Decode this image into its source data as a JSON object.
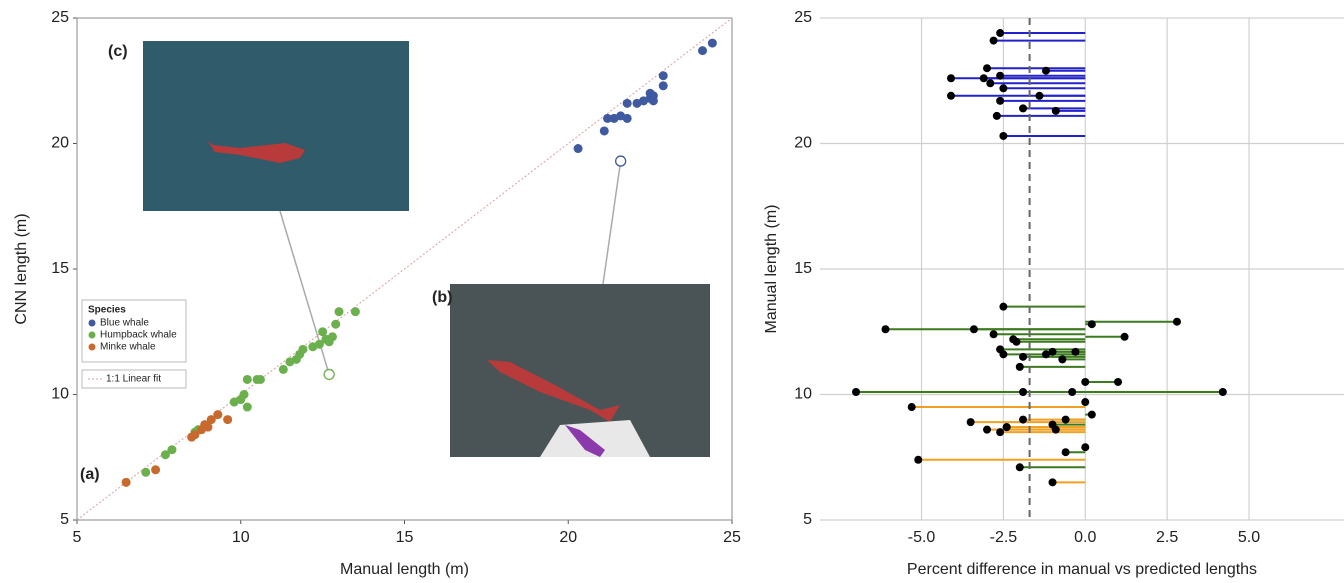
{
  "chart_data": [
    {
      "type": "scatter",
      "x_label": "Manual length (m)",
      "y_label": "CNN length (m)",
      "xlim": [
        5,
        25
      ],
      "ylim": [
        5,
        25
      ],
      "xticks": [
        5,
        10,
        15,
        20,
        25
      ],
      "yticks": [
        5,
        10,
        15,
        20,
        25
      ],
      "legend_title": "Species",
      "legend": "left",
      "annotations": [
        "(a)",
        "(b)",
        "(c)"
      ],
      "series": [
        {
          "name": "Blue whale",
          "color": "#3f5aa0",
          "x": [
            20.3,
            21.1,
            21.2,
            21.4,
            21.6,
            21.8,
            21.8,
            22.1,
            22.3,
            22.5,
            22.6,
            22.5,
            22.6,
            22.9,
            22.9,
            24.1,
            24.4
          ],
          "values": [
            19.8,
            20.5,
            21.0,
            21.0,
            21.1,
            21.0,
            21.6,
            21.6,
            21.7,
            21.8,
            21.9,
            22.0,
            21.7,
            22.3,
            22.7,
            23.7,
            24.0
          ]
        },
        {
          "name": "Humpback whale",
          "color": "#6ab04c",
          "x": [
            7.1,
            7.7,
            7.9,
            8.6,
            8.7,
            9.8,
            10.0,
            10.1,
            10.2,
            10.2,
            10.5,
            10.6,
            11.3,
            11.5,
            11.7,
            11.8,
            11.9,
            12.2,
            12.4,
            12.5,
            12.6,
            12.7,
            12.8,
            12.9,
            13.0,
            13.5
          ],
          "values": [
            6.9,
            7.6,
            7.8,
            8.5,
            8.6,
            9.7,
            9.8,
            10.0,
            9.5,
            10.6,
            10.6,
            10.6,
            11.0,
            11.3,
            11.4,
            11.6,
            11.8,
            11.9,
            12.0,
            12.5,
            12.2,
            12.1,
            12.3,
            12.8,
            13.3,
            13.3
          ]
        },
        {
          "name": "Minke whale",
          "color": "#c8692e",
          "x": [
            6.5,
            7.4,
            8.5,
            8.6,
            8.8,
            8.9,
            9.0,
            9.1,
            9.3,
            9.6
          ],
          "values": [
            6.5,
            7.0,
            8.3,
            8.4,
            8.6,
            8.8,
            8.7,
            9.0,
            9.2,
            9.0
          ]
        }
      ],
      "highlights": {
        "x": [
          21.6,
          12.7
        ],
        "values": [
          19.3,
          10.8
        ]
      },
      "fit": {
        "name": "1:1 Linear fit",
        "color": "#d9a0a0",
        "x": [
          5,
          25
        ],
        "values": [
          5,
          25
        ]
      }
    },
    {
      "type": "lollipop",
      "x_label": "Percent difference in manual vs predicted lengths",
      "y_label": "Manual length (m)",
      "xlim": [
        -8.1,
        7.9
      ],
      "ylim": [
        5,
        25
      ],
      "xticks": [
        {
          "value": -5,
          "label": "-5.0"
        },
        {
          "value": -2.5,
          "label": "-2.5"
        },
        {
          "value": 0,
          "label": "0.0"
        },
        {
          "value": 2.5,
          "label": "2.5"
        },
        {
          "value": 5,
          "label": "5.0"
        }
      ],
      "yticks": [
        5,
        10,
        15,
        20,
        25
      ],
      "grid": true,
      "vline": -1.7,
      "series": [
        {
          "color": "#2222cc",
          "x": [
            -2.6,
            -2.8,
            -3.0,
            -1.2,
            -4.1,
            -3.1,
            -2.6,
            -2.9,
            -2.5,
            -4.1,
            -1.4,
            -2.6,
            -1.9,
            -0.9,
            -2.7,
            -2.5
          ],
          "values": [
            24.4,
            24.1,
            23.0,
            22.9,
            22.6,
            22.6,
            22.7,
            22.4,
            22.2,
            21.9,
            21.9,
            21.7,
            21.4,
            21.3,
            21.1,
            20.3
          ]
        },
        {
          "color": "#3c7a1e",
          "x": [
            -2.5,
            2.8,
            -6.1,
            -3.4,
            0.2,
            -2.8,
            1.2,
            -2.2,
            -2.1,
            -2.6,
            -2.5,
            -1.2,
            -1.0,
            -0.3,
            -1.9,
            -0.7,
            -2.0,
            0.0,
            1.0,
            -7.0,
            4.2,
            -1.9,
            -0.4,
            0.0,
            0.2,
            -1.0,
            -0.6,
            -0.6,
            0.0,
            -2.0
          ],
          "values": [
            13.5,
            12.9,
            12.6,
            12.6,
            12.8,
            12.4,
            12.3,
            12.2,
            12.1,
            11.8,
            11.6,
            11.6,
            11.7,
            11.7,
            11.5,
            11.4,
            11.1,
            10.5,
            10.5,
            10.1,
            10.1,
            10.1,
            10.1,
            9.7,
            9.2,
            8.8,
            9.0,
            7.7,
            7.9,
            7.1
          ]
        },
        {
          "color": "#f0a020",
          "x": [
            -5.3,
            -1.9,
            -3.5,
            -2.4,
            -2.4,
            -3.0,
            -2.6,
            -0.9,
            -5.1,
            -1.0
          ],
          "values": [
            9.5,
            9.0,
            8.9,
            8.7,
            8.7,
            8.6,
            8.5,
            8.6,
            7.4,
            6.5
          ]
        }
      ]
    }
  ]
}
